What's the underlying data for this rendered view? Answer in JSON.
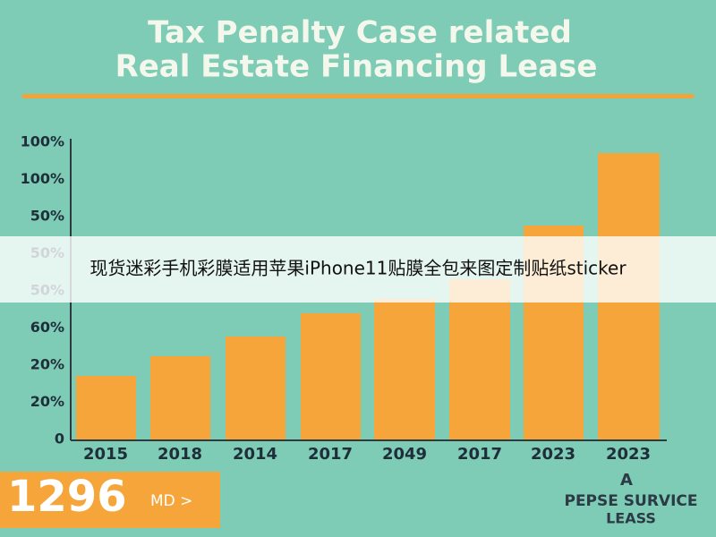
{
  "header": {
    "title_lines": [
      "Tax Penalty Case related",
      "Real Estate Financing Lease"
    ]
  },
  "axis_labels": [
    "100%",
    "100%",
    "50%",
    "50%",
    "50%",
    "60%",
    "20%",
    "20%",
    "0"
  ],
  "categories": [
    "2015",
    "2018",
    "2014",
    "2017",
    "2049",
    "2017",
    "2023",
    "2023"
  ],
  "badge": {
    "number": "1296",
    "unit": "MD >"
  },
  "corner_text": [
    "A",
    "PEPSE SURVICE",
    "LEASS"
  ],
  "banner": "现货迷彩手机彩膜适用苹果iPhone11贴膜全包来图定制贴纸sticker"
}
